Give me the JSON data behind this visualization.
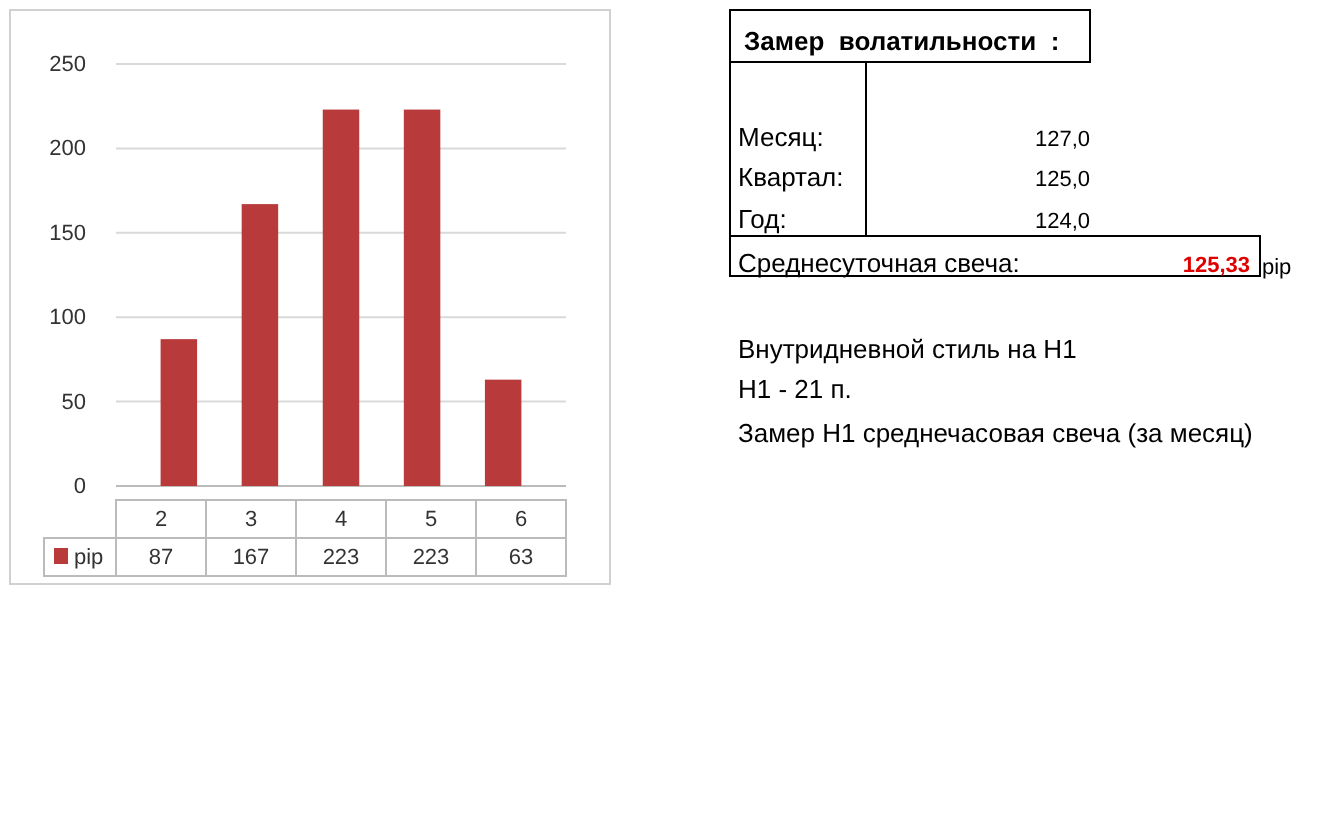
{
  "chart_data": [
    {
      "type": "bar",
      "categories": [
        "2",
        "3",
        "4",
        "5",
        "6"
      ],
      "series": [
        {
          "name": "pip",
          "color": "#b83a3a",
          "values": [
            87,
            167,
            223,
            223,
            63
          ]
        }
      ],
      "ylim": [
        0,
        250
      ],
      "yticks": [
        0,
        50,
        100,
        150,
        200,
        250
      ],
      "grid": "y",
      "data_labels": true,
      "legend": "bottom"
    },
    {
      "type": "other",
      "annotations": [
        "Замер  волатильности  :",
        "Месяц:",
        "127,0",
        "Квартал:",
        "125,0",
        "Год:",
        "124,0",
        "Среднесуточная свеча:",
        "125,33",
        "pip",
        "Внутридневной стиль на H1",
        "H1 - 21 п.",
        "Замер H1 среднечасовая свеча (за месяц)"
      ]
    }
  ]
}
